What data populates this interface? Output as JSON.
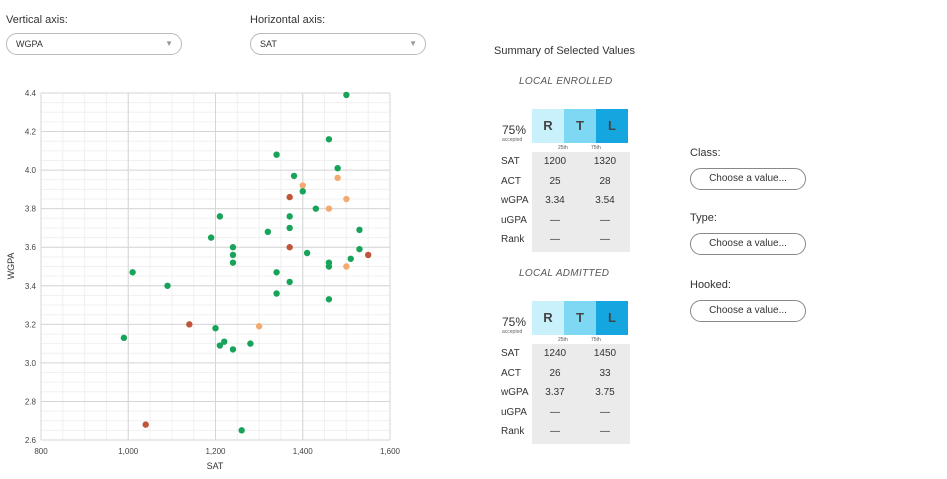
{
  "controls": {
    "vertical_label": "Vertical axis:",
    "vertical_value": "WGPA",
    "horizontal_label": "Horizontal axis:",
    "horizontal_value": "SAT"
  },
  "summary": {
    "title": "Summary of Selected Values",
    "sections": [
      {
        "title": "LOCAL ENROLLED",
        "pct": "75%",
        "accepted": "accepted",
        "rtl": [
          "R",
          "T",
          "L"
        ],
        "q25": "25th",
        "q75": "75th",
        "rows": [
          {
            "label": "SAT",
            "p25": "1200",
            "p75": "1320"
          },
          {
            "label": "ACT",
            "p25": "25",
            "p75": "28"
          },
          {
            "label": "wGPA",
            "p25": "3.34",
            "p75": "3.54"
          },
          {
            "label": "uGPA",
            "p25": "—",
            "p75": "—"
          },
          {
            "label": "Rank",
            "p25": "—",
            "p75": "—"
          }
        ]
      },
      {
        "title": "LOCAL ADMITTED",
        "pct": "75%",
        "accepted": "accepted",
        "rtl": [
          "R",
          "T",
          "L"
        ],
        "q25": "25th",
        "q75": "75th",
        "rows": [
          {
            "label": "SAT",
            "p25": "1240",
            "p75": "1450"
          },
          {
            "label": "ACT",
            "p25": "26",
            "p75": "33"
          },
          {
            "label": "wGPA",
            "p25": "3.37",
            "p75": "3.75"
          },
          {
            "label": "uGPA",
            "p25": "—",
            "p75": "—"
          },
          {
            "label": "Rank",
            "p25": "—",
            "p75": "—"
          }
        ]
      }
    ],
    "rtl_colors": [
      "#c9f1fb",
      "#7fd8f3",
      "#16a6df"
    ]
  },
  "filters": [
    {
      "label": "Class:",
      "placeholder": "Choose a value..."
    },
    {
      "label": "Type:",
      "placeholder": "Choose a value..."
    },
    {
      "label": "Hooked:",
      "placeholder": "Choose a value..."
    }
  ],
  "chart_data": {
    "type": "scatter",
    "xlabel": "SAT",
    "ylabel": "WGPA",
    "xlim": [
      800,
      1600
    ],
    "ylim": [
      2.6,
      4.4
    ],
    "xticks": [
      800,
      1000,
      1200,
      1400,
      1600
    ],
    "xtick_labels": [
      "800",
      "1,000",
      "1,200",
      "1,400",
      "1,600"
    ],
    "yticks": [
      2.6,
      2.8,
      3.0,
      3.2,
      3.4,
      3.6,
      3.8,
      4.0,
      4.2,
      4.4
    ],
    "ytick_labels": [
      "2.6",
      "2.8",
      "3.0",
      "3.2",
      "3.4",
      "3.6",
      "3.8",
      "4.0",
      "4.2",
      "4.4"
    ],
    "grid": true,
    "colors": {
      "green": "#17a35a",
      "red": "#c0553a",
      "orange": "#f2aa6e"
    },
    "points": [
      {
        "x": 990,
        "y": 3.13,
        "c": "green"
      },
      {
        "x": 1010,
        "y": 3.47,
        "c": "green"
      },
      {
        "x": 1040,
        "y": 2.68,
        "c": "red"
      },
      {
        "x": 1090,
        "y": 3.4,
        "c": "green"
      },
      {
        "x": 1140,
        "y": 3.2,
        "c": "red"
      },
      {
        "x": 1190,
        "y": 3.65,
        "c": "green"
      },
      {
        "x": 1200,
        "y": 3.18,
        "c": "green"
      },
      {
        "x": 1210,
        "y": 3.76,
        "c": "green"
      },
      {
        "x": 1210,
        "y": 3.09,
        "c": "green"
      },
      {
        "x": 1220,
        "y": 3.11,
        "c": "green"
      },
      {
        "x": 1240,
        "y": 3.6,
        "c": "green"
      },
      {
        "x": 1240,
        "y": 3.56,
        "c": "green"
      },
      {
        "x": 1240,
        "y": 3.52,
        "c": "green"
      },
      {
        "x": 1240,
        "y": 3.07,
        "c": "green"
      },
      {
        "x": 1260,
        "y": 2.65,
        "c": "green"
      },
      {
        "x": 1280,
        "y": 3.1,
        "c": "green"
      },
      {
        "x": 1300,
        "y": 3.19,
        "c": "orange"
      },
      {
        "x": 1320,
        "y": 3.68,
        "c": "green"
      },
      {
        "x": 1340,
        "y": 4.08,
        "c": "green"
      },
      {
        "x": 1340,
        "y": 3.47,
        "c": "green"
      },
      {
        "x": 1340,
        "y": 3.36,
        "c": "green"
      },
      {
        "x": 1370,
        "y": 3.86,
        "c": "red"
      },
      {
        "x": 1370,
        "y": 3.76,
        "c": "green"
      },
      {
        "x": 1370,
        "y": 3.7,
        "c": "green"
      },
      {
        "x": 1370,
        "y": 3.6,
        "c": "red"
      },
      {
        "x": 1370,
        "y": 3.42,
        "c": "green"
      },
      {
        "x": 1380,
        "y": 3.97,
        "c": "green"
      },
      {
        "x": 1400,
        "y": 3.92,
        "c": "orange"
      },
      {
        "x": 1400,
        "y": 3.89,
        "c": "green"
      },
      {
        "x": 1410,
        "y": 3.57,
        "c": "green"
      },
      {
        "x": 1430,
        "y": 3.8,
        "c": "green"
      },
      {
        "x": 1460,
        "y": 4.16,
        "c": "green"
      },
      {
        "x": 1460,
        "y": 3.8,
        "c": "orange"
      },
      {
        "x": 1460,
        "y": 3.52,
        "c": "green"
      },
      {
        "x": 1460,
        "y": 3.5,
        "c": "green"
      },
      {
        "x": 1460,
        "y": 3.33,
        "c": "green"
      },
      {
        "x": 1480,
        "y": 4.01,
        "c": "green"
      },
      {
        "x": 1480,
        "y": 3.96,
        "c": "orange"
      },
      {
        "x": 1500,
        "y": 4.39,
        "c": "green"
      },
      {
        "x": 1500,
        "y": 3.85,
        "c": "orange"
      },
      {
        "x": 1500,
        "y": 3.5,
        "c": "orange"
      },
      {
        "x": 1510,
        "y": 3.54,
        "c": "green"
      },
      {
        "x": 1530,
        "y": 3.69,
        "c": "green"
      },
      {
        "x": 1530,
        "y": 3.59,
        "c": "green"
      },
      {
        "x": 1550,
        "y": 3.56,
        "c": "red"
      }
    ]
  }
}
